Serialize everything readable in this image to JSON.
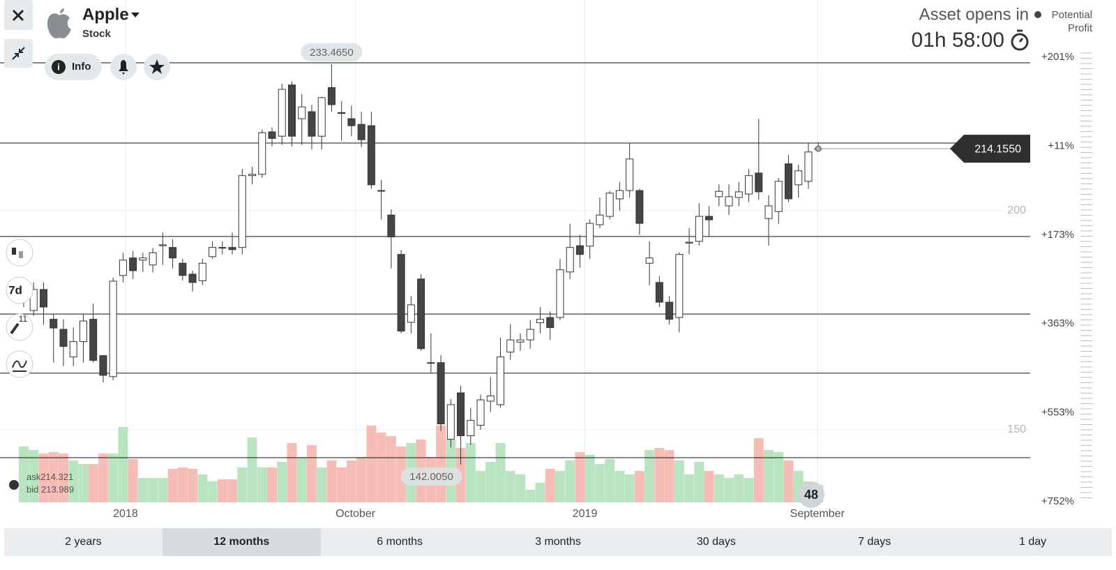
{
  "header": {
    "asset_name": "Apple",
    "asset_type": "Stock",
    "info_button": "Info",
    "opens_label": "Asset opens in",
    "countdown": "01h 58:00",
    "potential_profit_label": "Potential Profit"
  },
  "chart_data": {
    "type": "candlestick",
    "open": [
      179.5,
      177.2,
      182,
      175.2,
      172.9,
      166.6,
      170.1,
      175.2,
      166.9,
      162.1,
      185.2,
      189.2,
      188.7,
      187.6,
      192,
      191.6,
      188,
      185.5,
      184,
      189.5,
      191.6,
      191.6,
      191.6,
      208,
      208.3,
      218,
      217,
      228.7,
      221,
      222.6,
      217,
      228.1,
      222.4,
      221,
      219.7,
      219.4,
      204.6,
      199,
      190,
      174.5,
      184.4,
      165.3,
      165.3,
      147.8,
      158.4,
      148.6,
      151,
      156.5,
      155.7,
      167.7,
      170,
      170.5,
      174.4,
      175.6,
      175.6,
      186,
      192,
      191.9,
      196.8,
      198.7,
      202.7,
      204.6,
      204.6,
      188,
      183.6,
      179.1,
      175.6,
      192.6,
      193,
      198.7,
      203.2,
      201.1,
      203,
      203.8,
      208.6,
      198.2,
      199.8,
      210.7,
      205.9,
      206.7,
      214.1
    ],
    "high": [
      182,
      183.6,
      183.6,
      176.4,
      175.2,
      173.3,
      176.4,
      178.8,
      167,
      184.7,
      190.4,
      190.8,
      190.4,
      191.5,
      195,
      193.5,
      189,
      186.3,
      189,
      193,
      193,
      195,
      209.5,
      210,
      218.5,
      219,
      229,
      229.5,
      226.6,
      224.2,
      226,
      233.465,
      225,
      224,
      222.6,
      222.6,
      207,
      200.3,
      191,
      180.5,
      185.5,
      172,
      167,
      157,
      160,
      155,
      158,
      162,
      171,
      174,
      172,
      175,
      178,
      177,
      189,
      197,
      194.5,
      198,
      203,
      204.5,
      206.5,
      215.5,
      205,
      193,
      185,
      180.5,
      190.5,
      196,
      201.7,
      201,
      206,
      206,
      206.5,
      209.5,
      221,
      203.5,
      207.5,
      212.7,
      210.5,
      215.5,
      215.6
    ],
    "low": [
      178,
      176,
      174,
      165.3,
      164.5,
      164.5,
      165.3,
      165.3,
      160.8,
      161.3,
      183.6,
      184.4,
      186,
      185.9,
      187.6,
      186.8,
      184,
      181.5,
      183,
      189,
      190,
      190,
      190,
      206,
      207.5,
      214.7,
      215,
      214.7,
      215,
      214,
      214,
      222.6,
      216,
      217,
      214.5,
      205,
      198,
      186.8,
      172,
      172,
      168,
      163,
      149.7,
      146,
      142.005,
      146.5,
      150,
      154,
      155,
      166,
      168,
      168.5,
      172,
      170.5,
      175,
      184.4,
      187,
      189,
      196,
      198,
      200,
      203,
      194.5,
      183,
      178,
      174,
      172.2,
      190,
      192,
      194,
      201,
      199,
      201,
      202,
      202.5,
      192,
      197,
      202,
      203,
      205,
      213.5
    ],
    "close": [
      181.5,
      182,
      178,
      173.2,
      169,
      170.1,
      174.8,
      165.8,
      162.4,
      183.9,
      188.7,
      186.3,
      189.2,
      190.4,
      192.2,
      189.2,
      185.2,
      183.6,
      188,
      191.6,
      191.5,
      191.1,
      208,
      208.3,
      217.8,
      216.5,
      227.7,
      217,
      223.7,
      217,
      225.8,
      224.2,
      222.2,
      219.4,
      216.2,
      205.9,
      204.5,
      194,
      172.5,
      178.5,
      168.5,
      165.2,
      151.3,
      155.7,
      148.6,
      152.1,
      156.8,
      157.7,
      166.6,
      170.5,
      170.5,
      172.9,
      175.2,
      173.3,
      186.5,
      191.6,
      190,
      197.1,
      199,
      204,
      204.6,
      211.8,
      197.1,
      189.2,
      179.1,
      175.2,
      190,
      192.8,
      198.7,
      197.9,
      204.4,
      203.2,
      204.3,
      208,
      204.3,
      201.1,
      206.7,
      202.7,
      209.1,
      213.4,
      214.155
    ],
    "volume": [
      80,
      75,
      70,
      72,
      70,
      60,
      55,
      55,
      70,
      70,
      108,
      62,
      35,
      35,
      35,
      48,
      50,
      48,
      40,
      30,
      33,
      33,
      50,
      93,
      50,
      50,
      58,
      85,
      65,
      82,
      50,
      60,
      50,
      60,
      65,
      110,
      100,
      95,
      80,
      85,
      90,
      65,
      110,
      90,
      78,
      85,
      45,
      58,
      85,
      45,
      40,
      18,
      28,
      48,
      45,
      60,
      72,
      68,
      55,
      62,
      45,
      40,
      45,
      75,
      78,
      75,
      60,
      40,
      58,
      45,
      40,
      35,
      40,
      35,
      92,
      75,
      72,
      60,
      45,
      30,
      25
    ],
    "up_color": "#ffffff",
    "down_color": "#454545",
    "volume_up_color": "#b9e4c0",
    "volume_down_color": "#f5bdb5",
    "ylim": [
      133.4,
      248.1
    ],
    "yticks": [
      150,
      200
    ],
    "volume_lim": [
      0,
      120
    ],
    "xticks": [
      {
        "value": 10.25,
        "label": "2018"
      },
      {
        "value": 33.4,
        "label": "October"
      },
      {
        "value": 56.5,
        "label": "2019"
      },
      {
        "value": 79.9,
        "label": "September"
      }
    ],
    "strike_lines": [
      233.76,
      215.45,
      194.1,
      176.4,
      162.9,
      143.6
    ],
    "profit_labels": [
      "+201%",
      "+11%",
      "+173%",
      "+363%",
      "+553%",
      "+752%"
    ],
    "high_marker": {
      "value": 233.465,
      "label": "233.4650"
    },
    "low_marker": {
      "value": 142.005,
      "label": "142.0050"
    },
    "current_price": {
      "value": 214.155,
      "label": "214.1550"
    },
    "ask_label": "ask",
    "ask": 214.321,
    "bid_label": "bid",
    "bid": 213.989,
    "badge": 48,
    "period_button": "7d",
    "tool_count": 11
  },
  "tabs": [
    "2 years",
    "12 months",
    "6 months",
    "3 months",
    "30 days",
    "7 days",
    "1 day"
  ],
  "active_tab": 1
}
